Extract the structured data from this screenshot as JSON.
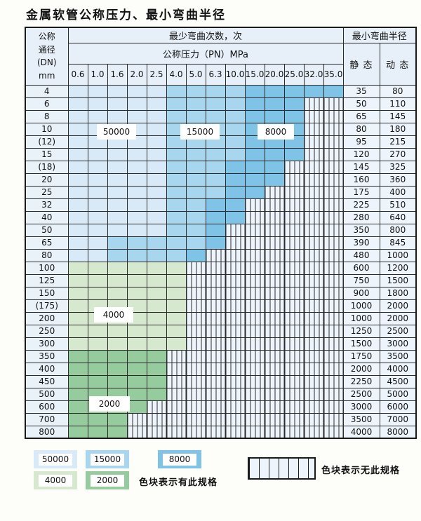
{
  "page_title": "金属软管公称压力、最小弯曲半径",
  "colors": {
    "cycles_50000": "#d8eaf8",
    "cycles_15000": "#a9d6ef",
    "cycles_8000": "#7fc3e6",
    "cycles_4000": "#d6e8ce",
    "cycles_2000": "#95cb9d",
    "hatch_bg": "#edf4fb",
    "header_bg": "#e7f0f8",
    "dn_label_bg": "#e9f1f9",
    "value_bg": "#eef4fb",
    "grid_border": "#2b2b2b"
  },
  "table": {
    "corner_lines": [
      "公称",
      "通径",
      "(DN)",
      "mm"
    ],
    "cycles_header": "最少弯曲次数，次",
    "pressure_header": "公称压力（PN）MPa",
    "pressure_columns": [
      "0.6",
      "1.0",
      "1.6",
      "2.0",
      "2.5",
      "4.0",
      "5.0",
      "6.3",
      "10.0",
      "15.0",
      "20.0",
      "25.0",
      "32.0",
      "35.0"
    ],
    "radius_header": "最小弯曲半径",
    "static_header": "静 态",
    "dynamic_header": "动 态",
    "cell_code_meaning": {
      "a": "50000",
      "b": "15000",
      "c": "8000",
      "d": "4000",
      "e": "2000",
      "x": "no-spec-hatched"
    },
    "rows": [
      {
        "dn": "4",
        "cells": "aaaaabbbbccccc",
        "static": "35",
        "dynamic": "80"
      },
      {
        "dn": "6",
        "cells": "aaaaabbbbcccxx",
        "static": "50",
        "dynamic": "110"
      },
      {
        "dn": "8",
        "cells": "aaaaabbbbcccxx",
        "static": "65",
        "dynamic": "145"
      },
      {
        "dn": "10",
        "cells": "aaaaabbbbcccxx",
        "static": "80",
        "dynamic": "180"
      },
      {
        "dn": "(12)",
        "cells": "aaaaabbbbcccxx",
        "static": "95",
        "dynamic": "215"
      },
      {
        "dn": "15",
        "cells": "aaaaabbbbcccxx",
        "static": "120",
        "dynamic": "270"
      },
      {
        "dn": "(18)",
        "cells": "aaaaabbbcccxxx",
        "static": "145",
        "dynamic": "325"
      },
      {
        "dn": "20",
        "cells": "aaaaabbbcccxxx",
        "static": "160",
        "dynamic": "360"
      },
      {
        "dn": "25",
        "cells": "aaaaabbbccxxxx",
        "static": "175",
        "dynamic": "400"
      },
      {
        "dn": "32",
        "cells": "aaaaabbccxxxxx",
        "static": "225",
        "dynamic": "510"
      },
      {
        "dn": "40",
        "cells": "aaaaabbccxxxxx",
        "static": "280",
        "dynamic": "640"
      },
      {
        "dn": "50",
        "cells": "aaaaabbcxxxxxx",
        "static": "350",
        "dynamic": "800"
      },
      {
        "dn": "65",
        "cells": "aabbbbbcxxxxxx",
        "static": "390",
        "dynamic": "845"
      },
      {
        "dn": "80",
        "cells": "aabbbbcxxxxxxx",
        "static": "480",
        "dynamic": "1000"
      },
      {
        "dn": "100",
        "cells": "ddddddxxxxxxxx",
        "static": "600",
        "dynamic": "1200"
      },
      {
        "dn": "125",
        "cells": "ddddddxxxxxxxx",
        "static": "750",
        "dynamic": "1500"
      },
      {
        "dn": "150",
        "cells": "ddddddxxxxxxxx",
        "static": "900",
        "dynamic": "1800"
      },
      {
        "dn": "(175)",
        "cells": "ddddddxxxxxxxx",
        "static": "1000",
        "dynamic": "2000"
      },
      {
        "dn": "200",
        "cells": "ddddddxxxxxxxx",
        "static": "1000",
        "dynamic": "2000"
      },
      {
        "dn": "250",
        "cells": "ddddddxxxxxxxx",
        "static": "1250",
        "dynamic": "2500"
      },
      {
        "dn": "300",
        "cells": "ddddddxxxxxxxx",
        "static": "1500",
        "dynamic": "3000"
      },
      {
        "dn": "350",
        "cells": "eeeeexxxxxxxxx",
        "static": "1750",
        "dynamic": "3500"
      },
      {
        "dn": "400",
        "cells": "eeeeexxxxxxxxx",
        "static": "2000",
        "dynamic": "4000"
      },
      {
        "dn": "450",
        "cells": "eeeeexxxxxxxxx",
        "static": "2250",
        "dynamic": "4500"
      },
      {
        "dn": "500",
        "cells": "eeeeexxxxxxxxx",
        "static": "2500",
        "dynamic": "5000"
      },
      {
        "dn": "600",
        "cells": "eeeexxxxxxxxxx",
        "static": "3000",
        "dynamic": "6000"
      },
      {
        "dn": "700",
        "cells": "eeexxxxxxxxxxx",
        "static": "3500",
        "dynamic": "7000"
      },
      {
        "dn": "800",
        "cells": "eeexxxxxxxxxxx",
        "static": "4000",
        "dynamic": "8000"
      }
    ]
  },
  "overlay_labels": {
    "l50000": "50000",
    "l15000": "15000",
    "l8000": "8000",
    "l4000": "4000",
    "l2000": "2000"
  },
  "legend": {
    "swatches": [
      "50000",
      "15000",
      "8000",
      "4000",
      "2000"
    ],
    "available_text": "色块表示有此规格",
    "unavailable_text": "色块表示无此规格"
  }
}
